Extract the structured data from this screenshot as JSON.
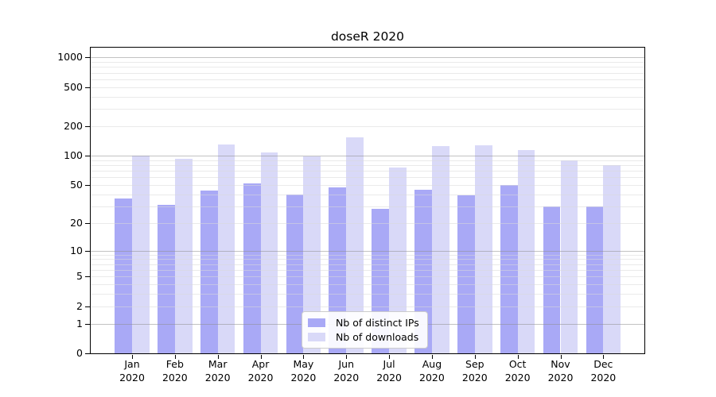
{
  "chart_data": {
    "type": "bar",
    "title": "doseR 2020",
    "categories": [
      "Jan",
      "Feb",
      "Mar",
      "Apr",
      "May",
      "Jun",
      "Jul",
      "Aug",
      "Sep",
      "Oct",
      "Nov",
      "Dec"
    ],
    "x_year_label": "2020",
    "series": [
      {
        "name": "Nb of distinct IPs",
        "color": "#a9a9f6",
        "values": [
          36,
          31,
          44,
          52,
          40,
          47,
          28,
          45,
          39,
          50,
          30,
          30
        ]
      },
      {
        "name": "Nb of downloads",
        "color": "#d9d9f8",
        "values": [
          100,
          93,
          130,
          108,
          98,
          154,
          75,
          125,
          128,
          114,
          89,
          80
        ]
      }
    ],
    "y_ticks": [
      0,
      1,
      2,
      5,
      10,
      20,
      50,
      100,
      200,
      500,
      1000
    ],
    "y_scale": "log10(value+1)",
    "y_max": 1270,
    "grid": {
      "major_values": [
        1,
        10,
        100,
        1000
      ],
      "major_color": "#909090",
      "minor_color": "#d9d9d9"
    },
    "legend_position": "bottom-center",
    "axis_color": "#000000",
    "background_color": "#ffffff"
  }
}
